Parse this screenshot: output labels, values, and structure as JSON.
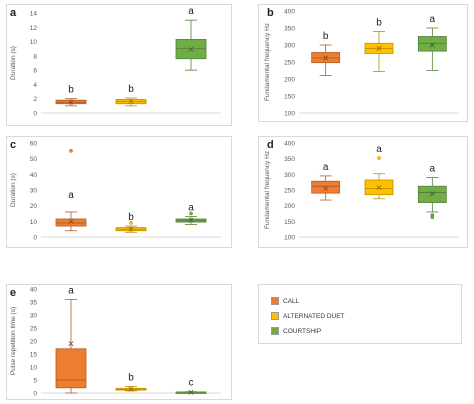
{
  "colors": {
    "call": "#ed7d31",
    "duet": "#ffc000",
    "courtship": "#70ad47"
  },
  "legend": [
    {
      "label": "CALL",
      "color": "#ed7d31"
    },
    {
      "label": "ALTERNATED DUET",
      "color": "#ffc000"
    },
    {
      "label": "COURTSHIP",
      "color": "#70ad47"
    }
  ],
  "chart_data": [
    {
      "panel": "a",
      "type": "box",
      "ylabel": "Duration (s)",
      "ylim": [
        0,
        14
      ],
      "ticks": [
        0,
        2,
        4,
        6,
        8,
        10,
        12,
        14
      ],
      "series": [
        {
          "name": "CALL",
          "color": "#ed7d31",
          "min": 1.0,
          "q1": 1.3,
          "median": 1.5,
          "q3": 1.8,
          "max": 2.0,
          "mean": 1.5,
          "outliers": [],
          "letter": "b"
        },
        {
          "name": "ALTERNATED DUET",
          "color": "#ffc000",
          "min": 1.0,
          "q1": 1.3,
          "median": 1.6,
          "q3": 1.9,
          "max": 2.1,
          "mean": 1.6,
          "outliers": [],
          "letter": "b"
        },
        {
          "name": "COURTSHIP",
          "color": "#70ad47",
          "min": 6.0,
          "q1": 7.6,
          "median": 9.0,
          "q3": 10.3,
          "max": 13.0,
          "mean": 8.9,
          "outliers": [],
          "letter": "a"
        }
      ]
    },
    {
      "panel": "b",
      "type": "box",
      "ylabel": "Fundamental frequency Hz",
      "ylim": [
        100,
        400
      ],
      "ticks": [
        100,
        150,
        200,
        250,
        300,
        350,
        400
      ],
      "series": [
        {
          "name": "CALL",
          "color": "#ed7d31",
          "min": 210,
          "q1": 248,
          "median": 262,
          "q3": 278,
          "max": 300,
          "mean": 262,
          "outliers": [],
          "letter": "b"
        },
        {
          "name": "ALTERNATED DUET",
          "color": "#ffc000",
          "min": 222,
          "q1": 275,
          "median": 290,
          "q3": 305,
          "max": 340,
          "mean": 290,
          "outliers": [],
          "letter": "b"
        },
        {
          "name": "COURTSHIP",
          "color": "#70ad47",
          "min": 225,
          "q1": 282,
          "median": 305,
          "q3": 325,
          "max": 350,
          "mean": 300,
          "outliers": [],
          "letter": "a"
        }
      ]
    },
    {
      "panel": "c",
      "type": "box",
      "ylabel": "Duration (s)",
      "ylim": [
        0,
        60
      ],
      "ticks": [
        0,
        10,
        20,
        30,
        40,
        50,
        60
      ],
      "series": [
        {
          "name": "CALL",
          "color": "#ed7d31",
          "min": 4,
          "q1": 7,
          "median": 9,
          "q3": 11.5,
          "max": 16,
          "mean": 10,
          "outliers": [
            55
          ],
          "letter": "a"
        },
        {
          "name": "ALTERNATED DUET",
          "color": "#ffc000",
          "min": 3,
          "q1": 4,
          "median": 5,
          "q3": 6,
          "max": 7,
          "mean": 5,
          "outliers": [
            9
          ],
          "letter": "b"
        },
        {
          "name": "COURTSHIP",
          "color": "#70ad47",
          "min": 8,
          "q1": 9.5,
          "median": 10.5,
          "q3": 11.5,
          "max": 13,
          "mean": 10.8,
          "outliers": [
            15
          ],
          "letter": "a"
        }
      ]
    },
    {
      "panel": "d",
      "type": "box",
      "ylabel": "Fundamental frequency Hz",
      "ylim": [
        100,
        400
      ],
      "ticks": [
        100,
        150,
        200,
        250,
        300,
        350,
        400
      ],
      "series": [
        {
          "name": "CALL",
          "color": "#ed7d31",
          "min": 218,
          "q1": 240,
          "median": 262,
          "q3": 278,
          "max": 295,
          "mean": 255,
          "outliers": [],
          "letter": "a"
        },
        {
          "name": "ALTERNATED DUET",
          "color": "#ffc000",
          "min": 222,
          "q1": 235,
          "median": 255,
          "q3": 282,
          "max": 302,
          "mean": 258,
          "outliers": [
            352
          ],
          "letter": "a"
        },
        {
          "name": "COURTSHIP",
          "color": "#70ad47",
          "min": 180,
          "q1": 210,
          "median": 242,
          "q3": 262,
          "max": 290,
          "mean": 238,
          "outliers": [
            170,
            163
          ],
          "letter": "a"
        }
      ]
    },
    {
      "panel": "e",
      "type": "box",
      "ylabel": "Pulse repetition time (s)",
      "ylim": [
        0,
        40
      ],
      "ticks": [
        0,
        5,
        10,
        15,
        20,
        25,
        30,
        35,
        40
      ],
      "series": [
        {
          "name": "CALL",
          "color": "#ed7d31",
          "min": 0,
          "q1": 2,
          "median": 5,
          "q3": 17,
          "max": 36,
          "mean": 19,
          "outliers": [],
          "letter": "a"
        },
        {
          "name": "ALTERNATED DUET",
          "color": "#ffc000",
          "min": 0.8,
          "q1": 1.1,
          "median": 1.4,
          "q3": 1.8,
          "max": 2.5,
          "mean": 1.5,
          "outliers": [],
          "letter": "b"
        },
        {
          "name": "COURTSHIP",
          "color": "#70ad47",
          "min": 0.1,
          "q1": 0.2,
          "median": 0.3,
          "q3": 0.4,
          "max": 0.5,
          "mean": 0.3,
          "outliers": [],
          "letter": "c"
        }
      ]
    }
  ]
}
